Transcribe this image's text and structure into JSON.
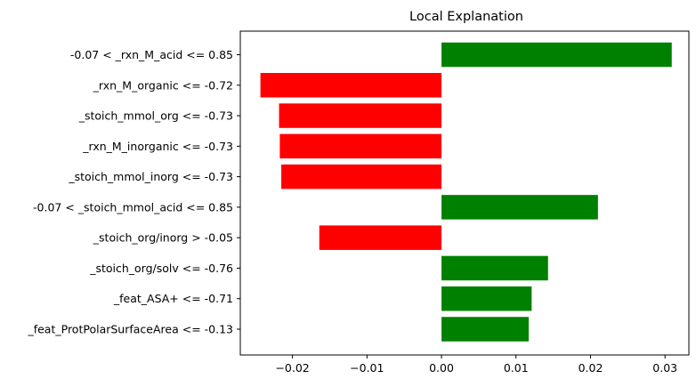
{
  "chart_data": {
    "type": "bar",
    "orientation": "horizontal",
    "title": "Local Explanation",
    "xlabel": "",
    "ylabel": "",
    "xlim": [
      -0.027,
      0.0332
    ],
    "x_ticks": [
      -0.02,
      -0.01,
      0.0,
      0.01,
      0.02,
      0.03
    ],
    "x_tick_labels": [
      "−0.02",
      "−0.01",
      "0.00",
      "0.01",
      "0.02",
      "0.03"
    ],
    "categories": [
      "-0.07 < _rxn_M_acid <= 0.85",
      "_rxn_M_organic <= -0.72",
      "_stoich_mmol_org <= -0.73",
      "_rxn_M_inorganic <= -0.73",
      "_stoich_mmol_inorg <= -0.73",
      "-0.07 < _stoich_mmol_acid <= 0.85",
      "_stoich_org/inorg > -0.05",
      "_stoich_org/solv <= -0.76",
      "_feat_ASA+ <= -0.71",
      "_feat_ProtPolarSurfaceArea <= -0.13"
    ],
    "values": [
      0.0309,
      -0.0243,
      -0.0218,
      -0.0217,
      -0.0215,
      0.021,
      -0.0164,
      0.0143,
      0.0121,
      0.0117
    ],
    "colors": {
      "positive": "#008000",
      "negative": "#ff0000"
    },
    "grid": false,
    "legend": "none"
  }
}
